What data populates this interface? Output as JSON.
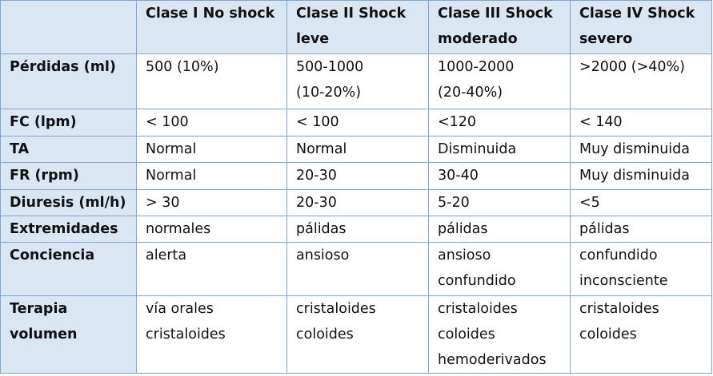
{
  "header": {
    "corner": "",
    "classes": [
      [
        "Clase I No shock"
      ],
      [
        "Clase II Shock",
        "leve"
      ],
      [
        "Clase III Shock",
        "moderado"
      ],
      [
        "Clase IV Shock",
        "severo"
      ]
    ]
  },
  "rows": [
    {
      "label": [
        "Pérdidas (ml)"
      ],
      "cells": [
        [
          "500 (10%)"
        ],
        [
          "500-1000",
          "(10-20%)"
        ],
        [
          "1000-2000",
          "(20-40%)"
        ],
        [
          ">2000 (>40%)"
        ]
      ]
    },
    {
      "label": [
        "FC (lpm)"
      ],
      "cells": [
        [
          "< 100"
        ],
        [
          "< 100"
        ],
        [
          "<120"
        ],
        [
          "< 140"
        ]
      ]
    },
    {
      "label": [
        "TA"
      ],
      "cells": [
        [
          "Normal"
        ],
        [
          "Normal"
        ],
        [
          "Disminuida"
        ],
        [
          "Muy disminuida"
        ]
      ]
    },
    {
      "label": [
        "FR (rpm)"
      ],
      "cells": [
        [
          "Normal"
        ],
        [
          "20-30"
        ],
        [
          "30-40"
        ],
        [
          "Muy disminuida"
        ]
      ]
    },
    {
      "label": [
        "Diuresis (ml/h)"
      ],
      "cells": [
        [
          "> 30"
        ],
        [
          "20-30"
        ],
        [
          "5-20"
        ],
        [
          "<5"
        ]
      ]
    },
    {
      "label": [
        "Extremidades"
      ],
      "cells": [
        [
          "normales"
        ],
        [
          "pálidas"
        ],
        [
          "pálidas"
        ],
        [
          "pálidas"
        ]
      ]
    },
    {
      "label": [
        "Conciencia"
      ],
      "cells": [
        [
          "alerta"
        ],
        [
          "ansioso"
        ],
        [
          "ansioso",
          "confundido"
        ],
        [
          "confundido",
          "inconsciente"
        ]
      ]
    },
    {
      "label": [
        "Terapia",
        "volumen"
      ],
      "cells": [
        [
          "vía orales",
          "cristaloides"
        ],
        [
          "cristaloides",
          "coloides"
        ],
        [
          "cristaloides",
          "coloides",
          "hemoderivados"
        ],
        [
          "cristaloides",
          "coloides"
        ]
      ]
    }
  ]
}
